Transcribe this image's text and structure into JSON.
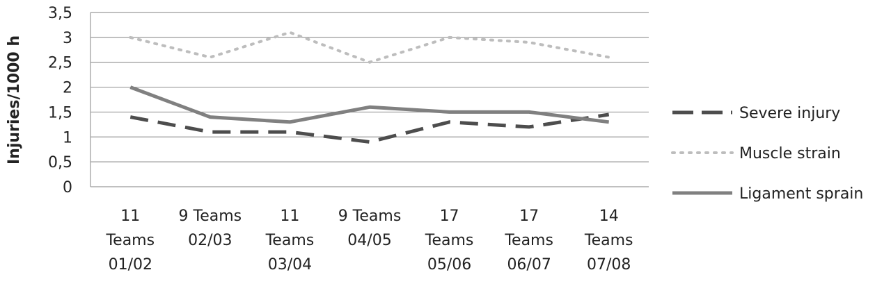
{
  "chart_data": {
    "type": "line",
    "title": "",
    "xlabel": "",
    "ylabel": "Injuries/1000 h",
    "ylim": [
      0,
      3.5
    ],
    "yticks": [
      "0",
      "0,5",
      "1",
      "1,5",
      "2",
      "2,5",
      "3",
      "3,5"
    ],
    "grid": true,
    "legend_position": "right",
    "categories": [
      [
        "11",
        "Teams",
        "01/02"
      ],
      [
        "9 Teams",
        "02/03"
      ],
      [
        "11",
        "Teams",
        "03/04"
      ],
      [
        "9 Teams",
        "04/05"
      ],
      [
        "17",
        "Teams",
        "05/06"
      ],
      [
        "17",
        "Teams",
        "06/07"
      ],
      [
        "14",
        "Teams",
        "07/08"
      ]
    ],
    "series": [
      {
        "name": "Severe injury",
        "values": [
          1.4,
          1.1,
          1.1,
          0.9,
          1.3,
          1.2,
          1.45
        ],
        "color": "#4d4d4d",
        "style": "dashed"
      },
      {
        "name": "Muscle strain",
        "values": [
          3.0,
          2.6,
          3.1,
          2.5,
          3.0,
          2.9,
          2.6
        ],
        "color": "#bdbdbd",
        "style": "dotted"
      },
      {
        "name": "Ligament sprain",
        "values": [
          2.0,
          1.4,
          1.3,
          1.6,
          1.5,
          1.5,
          1.3
        ],
        "color": "#808080",
        "style": "solid"
      }
    ]
  }
}
